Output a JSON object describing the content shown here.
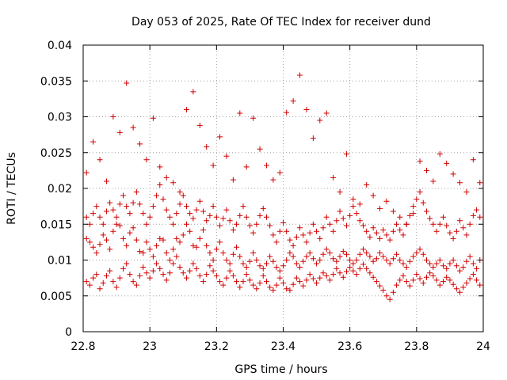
{
  "chart_data": {
    "type": "scatter",
    "title": "Day 053 of 2025, Rate Of TEC Index for receiver dund",
    "xlabel": "GPS time / hours",
    "ylabel": "ROTI / TECUs",
    "xlim": [
      22.8,
      24
    ],
    "ylim": [
      0,
      0.04
    ],
    "x_ticks": [
      "22.8",
      "23",
      "23.2",
      "23.4",
      "23.6",
      "23.8",
      "24"
    ],
    "y_ticks": [
      "0",
      "0.005",
      "0.01",
      "0.015",
      "0.02",
      "0.025",
      "0.03",
      "0.035",
      "0.04"
    ],
    "grid": true,
    "marker": "plus",
    "color": "#d00000",
    "series": [
      {
        "x": [
          22.81,
          22.82,
          22.83,
          22.84,
          22.85,
          22.86,
          22.87,
          22.88,
          22.89,
          22.9,
          22.91,
          22.92,
          22.93,
          22.94,
          22.95,
          22.96,
          22.97,
          22.98,
          22.99,
          23.0,
          23.01,
          23.02,
          23.03,
          23.04,
          23.05,
          23.06,
          23.07,
          23.08,
          23.09,
          23.1,
          23.11,
          23.12,
          23.13,
          23.14,
          23.15,
          23.16,
          23.17,
          23.18,
          23.19,
          23.2,
          23.21,
          23.22,
          23.23,
          23.24,
          23.25,
          23.26,
          23.27,
          23.28,
          23.29,
          23.3,
          23.31,
          23.32,
          23.33,
          23.34,
          23.35,
          23.36,
          23.37,
          23.38,
          23.39,
          23.4,
          23.41,
          23.42,
          23.43,
          23.44,
          23.45,
          23.46,
          23.47,
          23.48,
          23.49,
          23.5,
          23.51,
          23.52,
          23.53,
          23.54,
          23.55,
          23.56,
          23.57,
          23.58,
          23.59,
          23.6,
          23.61,
          23.62,
          23.63,
          23.64,
          23.65,
          23.66,
          23.67,
          23.68,
          23.69,
          23.7,
          23.71,
          23.72,
          23.73,
          23.74,
          23.75,
          23.76,
          23.77,
          23.78,
          23.79,
          23.8,
          23.81,
          23.82,
          23.83,
          23.84,
          23.85,
          23.86,
          23.87,
          23.88,
          23.89,
          23.9,
          23.91,
          23.92,
          23.93,
          23.94,
          23.95,
          23.96,
          23.97,
          23.98,
          23.99,
          22.81,
          22.82,
          22.83,
          22.84,
          22.85,
          22.86,
          22.87,
          22.88,
          22.89,
          22.9,
          22.91,
          22.92,
          22.93,
          22.94,
          22.95,
          22.96,
          22.97,
          22.98,
          22.99,
          23.0,
          23.01,
          23.02,
          23.03,
          23.04,
          23.05,
          23.06,
          23.07,
          23.08,
          23.09,
          23.1,
          23.11,
          23.12,
          23.13,
          23.14,
          23.15,
          23.16,
          23.17,
          23.18,
          23.19,
          23.2,
          23.21,
          23.22,
          23.23,
          23.24,
          23.25,
          23.26,
          23.27,
          23.28,
          23.29,
          23.3,
          23.31,
          23.32,
          23.33,
          23.34,
          23.35,
          23.36,
          23.37,
          23.38,
          23.39,
          23.4,
          23.41,
          23.42,
          23.43,
          23.44,
          23.45,
          23.46,
          23.47,
          23.48,
          23.49,
          23.5,
          23.51,
          23.52,
          23.53,
          23.54,
          23.55,
          23.56,
          23.57,
          23.58,
          23.59,
          23.6,
          23.61,
          23.62,
          23.63,
          23.64,
          23.65,
          23.66,
          23.67,
          23.68,
          23.69,
          23.7,
          23.71,
          23.72,
          23.73,
          23.74,
          23.75,
          23.76,
          23.77,
          23.78,
          23.79,
          23.8,
          23.81,
          23.82,
          23.83,
          23.84,
          23.85,
          23.86,
          23.87,
          23.88,
          23.89,
          23.9,
          23.91,
          23.92,
          23.93,
          23.94,
          23.95,
          23.96,
          23.97,
          23.98,
          23.99,
          22.81,
          22.82,
          22.83,
          22.84,
          22.85,
          22.86,
          22.87,
          22.88,
          22.89,
          22.9,
          22.91,
          22.92,
          22.93,
          22.94,
          22.95,
          22.96,
          22.97,
          22.98,
          22.99,
          23.0,
          23.01,
          23.02,
          23.03,
          23.04,
          23.05,
          23.06,
          23.07,
          23.08,
          23.09,
          23.1,
          23.11,
          23.12,
          23.13,
          23.14,
          23.15,
          23.16,
          23.17,
          23.18,
          23.19,
          23.2,
          23.21,
          23.22,
          23.23,
          23.24,
          23.25,
          23.26,
          23.27,
          23.28,
          23.29,
          23.3,
          23.31,
          23.32,
          23.33,
          23.34,
          23.35,
          23.36,
          23.37,
          23.38,
          23.39,
          23.4,
          23.41,
          23.42,
          23.43,
          23.44,
          23.45,
          23.46,
          23.47,
          23.48,
          23.49,
          23.5,
          23.51,
          23.52,
          23.53,
          23.54,
          23.55,
          23.56,
          23.57,
          23.58,
          23.59,
          23.6,
          23.61,
          23.62,
          23.63,
          23.64,
          23.65,
          23.66,
          23.67,
          23.68,
          23.69,
          23.7,
          23.71,
          23.72,
          23.73,
          23.74,
          23.75,
          23.76,
          23.77,
          23.78,
          23.79,
          23.8,
          23.81,
          23.82,
          23.83,
          23.84,
          23.85,
          23.86,
          23.87,
          23.88,
          23.89,
          23.9,
          23.91,
          23.92,
          23.93,
          23.94,
          23.95,
          23.96,
          23.97,
          23.98,
          23.99,
          22.81,
          22.83,
          22.85,
          22.87,
          22.89,
          22.91,
          22.93,
          22.95,
          22.97,
          22.99,
          23.01,
          23.03,
          23.05,
          23.07,
          23.09,
          23.11,
          23.13,
          23.15,
          23.17,
          23.19,
          23.21,
          23.23,
          23.25,
          23.27,
          23.29,
          23.31,
          23.33,
          23.35,
          23.37,
          23.39,
          23.41,
          23.43,
          23.45,
          23.47,
          23.49,
          23.51,
          23.53,
          23.55,
          23.57,
          23.59,
          23.61,
          23.63,
          23.65,
          23.67,
          23.69,
          23.71,
          23.73,
          23.75,
          23.77,
          23.79,
          23.81,
          23.83,
          23.85,
          23.87,
          23.89,
          23.91,
          23.93,
          23.95,
          23.97,
          23.99
        ],
        "y": [
          0.013,
          0.0125,
          0.0118,
          0.011,
          0.0122,
          0.0135,
          0.0128,
          0.0115,
          0.014,
          0.015,
          0.0148,
          0.013,
          0.012,
          0.0138,
          0.0145,
          0.0128,
          0.0112,
          0.011,
          0.0125,
          0.0115,
          0.0105,
          0.012,
          0.013,
          0.0128,
          0.011,
          0.01,
          0.0115,
          0.013,
          0.0125,
          0.0135,
          0.015,
          0.014,
          0.012,
          0.0118,
          0.013,
          0.0142,
          0.012,
          0.011,
          0.01,
          0.0115,
          0.0125,
          0.011,
          0.01,
          0.0095,
          0.0108,
          0.0118,
          0.0105,
          0.0095,
          0.009,
          0.0098,
          0.011,
          0.01,
          0.0092,
          0.0088,
          0.0095,
          0.0105,
          0.0098,
          0.009,
          0.0085,
          0.0092,
          0.01,
          0.011,
          0.0105,
          0.0095,
          0.009,
          0.0098,
          0.0105,
          0.011,
          0.0102,
          0.0095,
          0.01,
          0.0108,
          0.0115,
          0.011,
          0.0102,
          0.0098,
          0.0105,
          0.0112,
          0.0108,
          0.01,
          0.0095,
          0.01,
          0.0108,
          0.0115,
          0.011,
          0.0105,
          0.0098,
          0.0102,
          0.011,
          0.0105,
          0.01,
          0.0095,
          0.0102,
          0.0108,
          0.01,
          0.0095,
          0.009,
          0.0098,
          0.0105,
          0.011,
          0.0115,
          0.0108,
          0.01,
          0.0095,
          0.009,
          0.0095,
          0.01,
          0.0092,
          0.0088,
          0.0095,
          0.01,
          0.0092,
          0.0085,
          0.009,
          0.0098,
          0.0105,
          0.0095,
          0.0088,
          0.01,
          0.007,
          0.0065,
          0.0075,
          0.008,
          0.006,
          0.0068,
          0.0078,
          0.0085,
          0.007,
          0.0062,
          0.0075,
          0.0088,
          0.0095,
          0.008,
          0.007,
          0.0065,
          0.0078,
          0.009,
          0.0082,
          0.0075,
          0.0085,
          0.0095,
          0.0088,
          0.008,
          0.0072,
          0.0082,
          0.0095,
          0.0105,
          0.009,
          0.0082,
          0.0075,
          0.0085,
          0.0095,
          0.0088,
          0.0078,
          0.007,
          0.008,
          0.0092,
          0.0085,
          0.0078,
          0.007,
          0.0065,
          0.0075,
          0.0085,
          0.0078,
          0.007,
          0.0062,
          0.007,
          0.008,
          0.0072,
          0.0065,
          0.006,
          0.0068,
          0.0078,
          0.007,
          0.0062,
          0.0058,
          0.0065,
          0.0075,
          0.0068,
          0.006,
          0.0058,
          0.0066,
          0.0075,
          0.007,
          0.0064,
          0.0072,
          0.008,
          0.0074,
          0.0068,
          0.0075,
          0.0082,
          0.0078,
          0.0072,
          0.008,
          0.0088,
          0.0082,
          0.0076,
          0.0084,
          0.009,
          0.0085,
          0.008,
          0.0088,
          0.0094,
          0.0088,
          0.0082,
          0.0076,
          0.007,
          0.0064,
          0.0058,
          0.005,
          0.0045,
          0.0055,
          0.0065,
          0.0072,
          0.0078,
          0.007,
          0.0064,
          0.0072,
          0.008,
          0.0074,
          0.0068,
          0.0076,
          0.0082,
          0.0078,
          0.0072,
          0.0065,
          0.007,
          0.0076,
          0.0072,
          0.0066,
          0.006,
          0.0055,
          0.0062,
          0.0068,
          0.0074,
          0.008,
          0.0072,
          0.0065,
          0.016,
          0.015,
          0.0165,
          0.0175,
          0.016,
          0.015,
          0.0168,
          0.018,
          0.017,
          0.016,
          0.0178,
          0.019,
          0.0175,
          0.0165,
          0.018,
          0.0195,
          0.0178,
          0.0165,
          0.015,
          0.016,
          0.0175,
          0.019,
          0.0205,
          0.0185,
          0.017,
          0.016,
          0.015,
          0.0165,
          0.0178,
          0.019,
          0.0175,
          0.0165,
          0.0158,
          0.017,
          0.0182,
          0.0168,
          0.0155,
          0.0162,
          0.0175,
          0.016,
          0.0148,
          0.0158,
          0.017,
          0.0155,
          0.0142,
          0.015,
          0.0162,
          0.0175,
          0.016,
          0.0148,
          0.0138,
          0.015,
          0.0162,
          0.0172,
          0.016,
          0.0148,
          0.0135,
          0.0125,
          0.014,
          0.0152,
          0.014,
          0.0128,
          0.012,
          0.0132,
          0.0145,
          0.0135,
          0.0125,
          0.0138,
          0.015,
          0.014,
          0.013,
          0.0145,
          0.016,
          0.015,
          0.014,
          0.0155,
          0.0168,
          0.0158,
          0.0148,
          0.0162,
          0.0175,
          0.0165,
          0.0155,
          0.0148,
          0.014,
          0.0132,
          0.0145,
          0.0138,
          0.013,
          0.0142,
          0.0135,
          0.0128,
          0.014,
          0.015,
          0.0142,
          0.0135,
          0.015,
          0.0162,
          0.0175,
          0.0185,
          0.0195,
          0.018,
          0.0168,
          0.0158,
          0.015,
          0.014,
          0.015,
          0.016,
          0.0148,
          0.0138,
          0.013,
          0.014,
          0.0155,
          0.0145,
          0.0135,
          0.015,
          0.0162,
          0.017,
          0.016,
          0.0222,
          0.0265,
          0.024,
          0.021,
          0.03,
          0.0278,
          0.0347,
          0.0285,
          0.0262,
          0.024,
          0.0298,
          0.023,
          0.0215,
          0.0208,
          0.0195,
          0.031,
          0.0335,
          0.0288,
          0.0258,
          0.0232,
          0.0272,
          0.0245,
          0.0212,
          0.0305,
          0.023,
          0.0298,
          0.0255,
          0.0232,
          0.0212,
          0.0222,
          0.0306,
          0.0322,
          0.0358,
          0.031,
          0.027,
          0.0295,
          0.0305,
          0.0215,
          0.0195,
          0.0248,
          0.0185,
          0.0178,
          0.0205,
          0.019,
          0.0172,
          0.0182,
          0.0168,
          0.016,
          0.015,
          0.0165,
          0.0238,
          0.0225,
          0.021,
          0.0248,
          0.0235,
          0.022,
          0.0208,
          0.0195,
          0.024,
          0.0208
        ]
      }
    ]
  }
}
